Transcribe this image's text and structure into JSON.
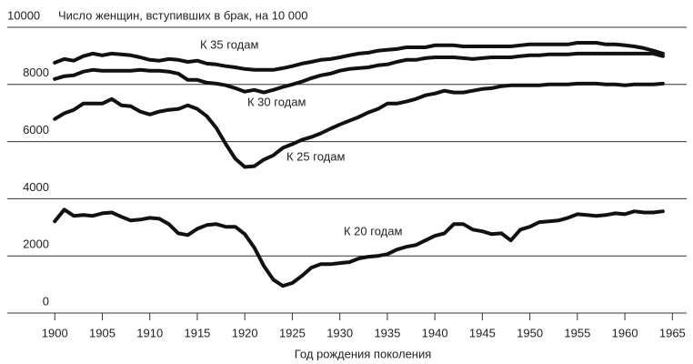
{
  "chart_data": {
    "type": "line",
    "title": "Число женщин, вступивших в брак, на 10 000",
    "x_label": "Год рождения поколения",
    "x": [
      1900,
      1901,
      1902,
      1903,
      1904,
      1905,
      1906,
      1907,
      1908,
      1909,
      1910,
      1911,
      1912,
      1913,
      1914,
      1915,
      1916,
      1917,
      1918,
      1919,
      1920,
      1921,
      1922,
      1923,
      1924,
      1925,
      1926,
      1927,
      1928,
      1929,
      1930,
      1931,
      1932,
      1933,
      1934,
      1935,
      1936,
      1937,
      1938,
      1939,
      1940,
      1941,
      1942,
      1943,
      1944,
      1945,
      1946,
      1947,
      1948,
      1949,
      1950,
      1951,
      1952,
      1953,
      1954,
      1955,
      1956,
      1957,
      1958,
      1959,
      1960,
      1961,
      1962,
      1963,
      1964
    ],
    "series": [
      {
        "name": "К 35 годам",
        "color": "#111111",
        "values": [
          8760,
          8890,
          8830,
          8990,
          9080,
          9020,
          9080,
          9050,
          9020,
          8950,
          8860,
          8830,
          8890,
          8860,
          8790,
          8830,
          8730,
          8700,
          8640,
          8600,
          8540,
          8510,
          8510,
          8510,
          8570,
          8640,
          8730,
          8790,
          8860,
          8890,
          8950,
          9020,
          9080,
          9110,
          9180,
          9210,
          9240,
          9300,
          9300,
          9300,
          9370,
          9370,
          9370,
          9330,
          9330,
          9330,
          9330,
          9330,
          9330,
          9370,
          9400,
          9400,
          9400,
          9400,
          9400,
          9460,
          9460,
          9460,
          9400,
          9400,
          9370,
          9330,
          9270,
          9180,
          9080
        ]
      },
      {
        "name": "К 30 годам",
        "color": "#111111",
        "values": [
          8190,
          8290,
          8320,
          8450,
          8510,
          8480,
          8480,
          8480,
          8480,
          8510,
          8480,
          8480,
          8450,
          8380,
          8160,
          8160,
          8060,
          8030,
          7970,
          7870,
          7750,
          7810,
          7720,
          7810,
          7910,
          8000,
          8100,
          8220,
          8320,
          8380,
          8480,
          8540,
          8570,
          8600,
          8670,
          8700,
          8790,
          8860,
          8860,
          8920,
          8950,
          8950,
          8950,
          8920,
          8890,
          8920,
          8950,
          8950,
          8950,
          8990,
          9020,
          9020,
          9050,
          9050,
          9050,
          9080,
          9080,
          9080,
          9080,
          9080,
          9080,
          9080,
          9080,
          9080,
          8990
        ]
      },
      {
        "name": "К 25 годам",
        "color": "#111111",
        "values": [
          6790,
          6990,
          7110,
          7330,
          7330,
          7330,
          7490,
          7270,
          7240,
          7050,
          6950,
          7050,
          7110,
          7140,
          7270,
          7140,
          6890,
          6480,
          5910,
          5400,
          5110,
          5140,
          5370,
          5520,
          5780,
          5910,
          6060,
          6160,
          6290,
          6450,
          6600,
          6730,
          6860,
          7020,
          7140,
          7330,
          7330,
          7400,
          7490,
          7620,
          7680,
          7780,
          7720,
          7720,
          7780,
          7840,
          7870,
          7940,
          7970,
          7970,
          7970,
          7970,
          8000,
          8000,
          8000,
          8030,
          8030,
          8030,
          8000,
          8000,
          7970,
          8000,
          8000,
          8000,
          8030
        ]
      },
      {
        "name": "К 20 годам",
        "color": "#111111",
        "values": [
          3210,
          3620,
          3400,
          3430,
          3400,
          3490,
          3520,
          3370,
          3240,
          3270,
          3330,
          3300,
          3110,
          2790,
          2730,
          2950,
          3080,
          3110,
          3020,
          3020,
          2760,
          2290,
          1650,
          1170,
          950,
          1050,
          1300,
          1590,
          1710,
          1710,
          1750,
          1780,
          1910,
          1970,
          2000,
          2060,
          2220,
          2320,
          2380,
          2540,
          2700,
          2790,
          3110,
          3110,
          2920,
          2860,
          2760,
          2790,
          2540,
          2920,
          3020,
          3180,
          3210,
          3240,
          3330,
          3460,
          3430,
          3400,
          3430,
          3490,
          3460,
          3560,
          3520,
          3520,
          3560
        ]
      }
    ],
    "xlim": [
      1895,
      1966.5
    ],
    "xticks": [
      1900,
      1905,
      1910,
      1915,
      1920,
      1925,
      1930,
      1935,
      1940,
      1945,
      1950,
      1955,
      1960,
      1965
    ],
    "ylim": [
      0,
      10000
    ],
    "yticks": [
      0,
      2000,
      4000,
      6000,
      8000,
      10000
    ],
    "grid": true
  }
}
